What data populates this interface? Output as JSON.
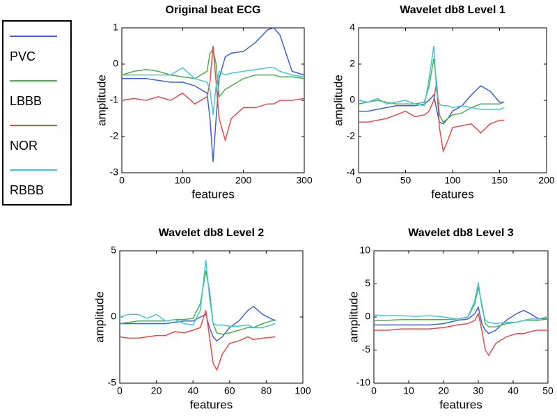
{
  "chart_data": [
    {
      "type": "line",
      "title": "Original beat ECG",
      "xlabel": "features",
      "ylabel": "amplitude",
      "x": [
        0,
        20,
        40,
        60,
        80,
        100,
        120,
        140,
        145,
        150,
        155,
        160,
        170,
        180,
        200,
        220,
        240,
        250,
        260,
        280,
        300
      ],
      "xlim": [
        0,
        300
      ],
      "ylim": [
        -3,
        1
      ],
      "xticks": [
        0,
        100,
        200,
        300
      ],
      "yticks": [
        -3,
        -2,
        -1,
        0,
        1
      ],
      "series": [
        {
          "name": "PVC",
          "color": "#3f5fd9",
          "values": [
            -0.4,
            -0.4,
            -0.4,
            -0.45,
            -0.5,
            -0.5,
            -0.6,
            -0.8,
            -1.5,
            -2.7,
            -1.5,
            -0.4,
            0.2,
            0.3,
            0.35,
            0.6,
            0.95,
            1.0,
            0.8,
            -0.2,
            -0.3
          ]
        },
        {
          "name": "LBBB",
          "color": "#4cb04c",
          "values": [
            -0.3,
            -0.2,
            -0.15,
            -0.2,
            -0.3,
            -0.35,
            -0.4,
            -0.2,
            0.3,
            0.4,
            0.0,
            -0.9,
            -0.7,
            -0.6,
            -0.4,
            -0.3,
            -0.3,
            -0.3,
            -0.35,
            -0.35,
            -0.4
          ]
        },
        {
          "name": "NOR",
          "color": "#e84a4a",
          "values": [
            -1.0,
            -0.95,
            -1.0,
            -0.9,
            -1.0,
            -0.8,
            -1.1,
            -0.9,
            -0.5,
            0.5,
            -0.5,
            -1.5,
            -2.1,
            -1.5,
            -1.2,
            -1.2,
            -1.1,
            -1.1,
            -1.0,
            -1.0,
            -0.95
          ]
        },
        {
          "name": "RBBB",
          "color": "#40c8d8",
          "values": [
            -0.3,
            -0.3,
            -0.3,
            -0.3,
            -0.3,
            -0.1,
            -0.4,
            -0.5,
            -0.7,
            -1.4,
            -0.6,
            -0.2,
            -0.3,
            -0.25,
            -0.2,
            -0.15,
            -0.1,
            -0.1,
            -0.2,
            -0.3,
            -0.35
          ]
        }
      ]
    },
    {
      "type": "line",
      "title": "Wavelet db8 Level 1",
      "xlabel": "features",
      "ylabel": "amplitude",
      "x": [
        0,
        10,
        20,
        30,
        40,
        50,
        60,
        70,
        75,
        80,
        83,
        86,
        90,
        95,
        100,
        110,
        120,
        130,
        140,
        150,
        155
      ],
      "xlim": [
        0,
        200
      ],
      "ylim": [
        -4,
        4
      ],
      "xticks": [
        0,
        50,
        100,
        150,
        200
      ],
      "yticks": [
        -4,
        -2,
        0,
        2,
        4
      ],
      "series": [
        {
          "name": "PVC",
          "color": "#3f5fd9",
          "values": [
            -0.6,
            -0.6,
            -0.5,
            -0.4,
            -0.3,
            -0.3,
            -0.3,
            -0.2,
            0.0,
            0.3,
            -0.5,
            -1.2,
            -1.3,
            -1.0,
            -0.6,
            -0.3,
            0.3,
            0.8,
            0.5,
            -0.1,
            -0.1
          ]
        },
        {
          "name": "LBBB",
          "color": "#4cb04c",
          "values": [
            -0.2,
            -0.1,
            0.0,
            -0.1,
            -0.2,
            -0.2,
            -0.2,
            -0.1,
            0.8,
            2.3,
            1.0,
            -0.8,
            -1.2,
            -1.0,
            -0.8,
            -0.7,
            -0.4,
            -0.2,
            -0.2,
            -0.2,
            -0.1
          ]
        },
        {
          "name": "NOR",
          "color": "#e84a4a",
          "values": [
            -1.2,
            -1.2,
            -1.1,
            -1.0,
            -0.8,
            -0.6,
            -0.9,
            -0.8,
            -0.6,
            0.0,
            1.0,
            -1.5,
            -2.8,
            -2.2,
            -1.5,
            -1.4,
            -1.3,
            -1.8,
            -1.3,
            -1.1,
            -1.1
          ]
        },
        {
          "name": "RBBB",
          "color": "#40c8d8",
          "values": [
            0.0,
            -0.1,
            0.1,
            -0.2,
            -0.1,
            0.0,
            -0.2,
            -0.3,
            1.2,
            3.0,
            0.5,
            -0.2,
            -0.3,
            -0.3,
            -0.4,
            -0.3,
            -0.4,
            -0.5,
            -0.5,
            -0.5,
            -0.4
          ]
        }
      ]
    },
    {
      "type": "line",
      "title": "Wavelet db8 Level 2",
      "xlabel": "features",
      "ylabel": "amplitude",
      "x": [
        0,
        5,
        10,
        15,
        20,
        25,
        30,
        35,
        40,
        44,
        47,
        49,
        51,
        53,
        56,
        60,
        65,
        70,
        73,
        78,
        85
      ],
      "xlim": [
        0,
        100
      ],
      "ylim": [
        -5,
        5
      ],
      "xticks": [
        0,
        20,
        40,
        60,
        80,
        100
      ],
      "yticks": [
        -5,
        0,
        5
      ],
      "series": [
        {
          "name": "PVC",
          "color": "#3f5fd9",
          "values": [
            -0.5,
            -0.5,
            -0.5,
            -0.5,
            -0.5,
            -0.5,
            -0.4,
            -0.3,
            -0.3,
            0.0,
            0.2,
            -0.8,
            -1.5,
            -1.8,
            -1.5,
            -0.8,
            -0.3,
            0.5,
            0.8,
            0.2,
            -0.3
          ]
        },
        {
          "name": "LBBB",
          "color": "#4cb04c",
          "values": [
            -0.5,
            -0.4,
            -0.3,
            -0.3,
            -0.3,
            -0.3,
            -0.2,
            -0.2,
            -0.1,
            1.0,
            3.5,
            2.0,
            -0.5,
            -1.2,
            -1.3,
            -1.2,
            -1.0,
            -0.8,
            -0.8,
            -0.5,
            -0.2
          ]
        },
        {
          "name": "NOR",
          "color": "#e84a4a",
          "values": [
            -1.5,
            -1.6,
            -1.6,
            -1.5,
            -1.4,
            -1.4,
            -1.1,
            -1.2,
            -1.0,
            -0.8,
            0.5,
            -1.5,
            -3.5,
            -4.0,
            -2.8,
            -2.0,
            -1.8,
            -1.5,
            -1.7,
            -1.6,
            -1.5
          ]
        },
        {
          "name": "RBBB",
          "color": "#40c8d8",
          "values": [
            0.0,
            0.2,
            0.2,
            -0.1,
            0.2,
            -0.3,
            -0.2,
            -0.5,
            -0.6,
            0.5,
            4.3,
            1.5,
            -0.5,
            -0.6,
            -0.6,
            -0.7,
            -0.7,
            -0.6,
            -0.8,
            -0.8,
            -0.5
          ]
        }
      ]
    },
    {
      "type": "line",
      "title": "Wavelet db8 Level 3",
      "xlabel": "features",
      "ylabel": "amplitude",
      "x": [
        0,
        4,
        8,
        12,
        16,
        20,
        24,
        27,
        29,
        30,
        31,
        32,
        33,
        35,
        38,
        41,
        43,
        45,
        47,
        50
      ],
      "xlim": [
        0,
        50
      ],
      "ylim": [
        -10,
        10
      ],
      "xticks": [
        0,
        10,
        20,
        30,
        40,
        50
      ],
      "yticks": [
        -10,
        -5,
        0,
        5,
        10
      ],
      "series": [
        {
          "name": "PVC",
          "color": "#3f5fd9",
          "values": [
            -1.2,
            -1.2,
            -1.2,
            -1.2,
            -1.2,
            -1.0,
            -0.5,
            -0.3,
            0.5,
            1.5,
            -1.0,
            -2.0,
            -2.5,
            -2.0,
            -0.5,
            0.5,
            1.0,
            0.5,
            -0.2,
            -0.3
          ]
        },
        {
          "name": "LBBB",
          "color": "#4cb04c",
          "values": [
            -0.5,
            -0.5,
            -0.4,
            -0.4,
            -0.4,
            -0.4,
            -0.3,
            0.0,
            2.0,
            4.5,
            2.0,
            -1.0,
            -1.5,
            -1.5,
            -1.0,
            -0.8,
            -0.5,
            -0.5,
            -0.5,
            -0.3
          ]
        },
        {
          "name": "NOR",
          "color": "#e84a4a",
          "values": [
            -2.0,
            -2.0,
            -1.8,
            -1.8,
            -1.8,
            -1.6,
            -1.2,
            -1.0,
            -0.5,
            0.5,
            -2.0,
            -5.0,
            -5.8,
            -4.0,
            -3.0,
            -2.5,
            -2.5,
            -2.2,
            -2.0,
            -2.0
          ]
        },
        {
          "name": "RBBB",
          "color": "#40c8d8",
          "values": [
            0.3,
            0.2,
            0.2,
            0.1,
            0.2,
            0.0,
            -0.3,
            0.0,
            2.5,
            5.2,
            1.5,
            -0.5,
            -0.8,
            -1.0,
            -0.8,
            -0.8,
            -0.5,
            -0.3,
            -0.3,
            0.0
          ]
        }
      ]
    }
  ]
}
